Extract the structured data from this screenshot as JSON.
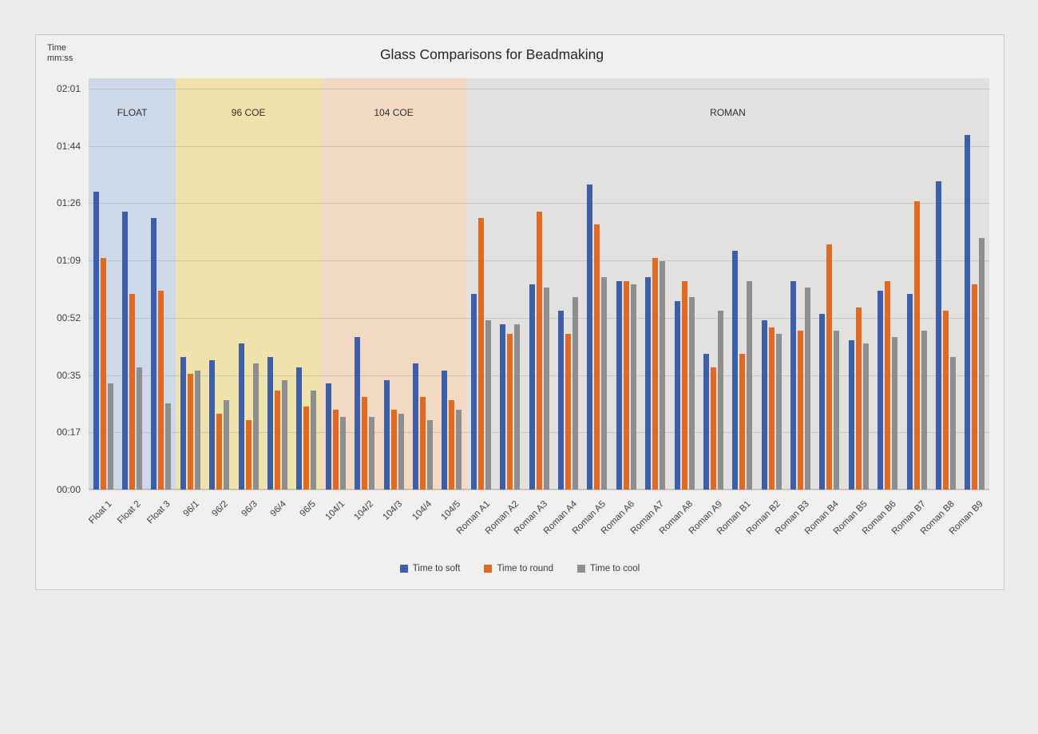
{
  "chart_data": {
    "type": "bar",
    "title": "Glass Comparisons for Beadmaking",
    "y_axis_title_lines": [
      "Time",
      "mm:ss"
    ],
    "unit": "seconds (displayed as mm:ss)",
    "ylim": [
      0,
      121
    ],
    "grid": true,
    "legend_position": "bottom",
    "x_labels_rotation_deg": 45,
    "y_tick_labels_top_to_bottom": [
      "02:01",
      "01:44",
      "01:26",
      "01:09",
      "00:52",
      "00:35",
      "00:17",
      "00:00"
    ],
    "categories": [
      "Float 1",
      "Float 2",
      "Float 3",
      "96/1",
      "96/2",
      "96/3",
      "96/4",
      "96/5",
      "104/1",
      "104/2",
      "104/3",
      "104/4",
      "104/5",
      "Roman A1",
      "Roman A2",
      "Roman A3",
      "Roman A4",
      "Roman A5",
      "Roman A6",
      "Roman A7",
      "Roman A8",
      "Roman A9",
      "Roman B1",
      "Roman B2",
      "Roman B3",
      "Roman B4",
      "Roman B5",
      "Roman B6",
      "Roman B7",
      "Roman B8",
      "Roman B9"
    ],
    "series": [
      {
        "name": "Time to soft",
        "color": "#3c5fa8",
        "values_seconds": [
          90,
          84,
          82,
          40,
          39,
          44,
          40,
          37,
          32,
          46,
          33,
          38,
          36,
          59,
          50,
          62,
          54,
          92,
          63,
          64,
          57,
          41,
          72,
          51,
          63,
          53,
          45,
          60,
          59,
          93,
          107
        ]
      },
      {
        "name": "Time to round",
        "color": "#e06a21",
        "values_seconds": [
          70,
          59,
          60,
          35,
          23,
          21,
          30,
          25,
          24,
          28,
          24,
          28,
          27,
          82,
          47,
          84,
          47,
          80,
          63,
          70,
          63,
          37,
          41,
          49,
          48,
          74,
          55,
          63,
          87,
          54,
          62
        ]
      },
      {
        "name": "Time to cool",
        "color": "#8e8e8e",
        "values_seconds": [
          32,
          37,
          26,
          36,
          27,
          38,
          33,
          30,
          22,
          22,
          23,
          21,
          24,
          51,
          50,
          61,
          58,
          64,
          62,
          69,
          58,
          54,
          63,
          47,
          61,
          48,
          44,
          46,
          48,
          40,
          76
        ]
      }
    ],
    "bands": [
      {
        "label": "FLOAT",
        "category_count": 3,
        "color": "#cdd8e8"
      },
      {
        "label": "96 COE",
        "category_count": 5,
        "color": "#f0e2ac"
      },
      {
        "label": "104 COE",
        "category_count": 5,
        "color": "#f2d9c3"
      },
      {
        "label": "ROMAN",
        "category_count": 18,
        "color": "#e2e1e0"
      }
    ]
  }
}
